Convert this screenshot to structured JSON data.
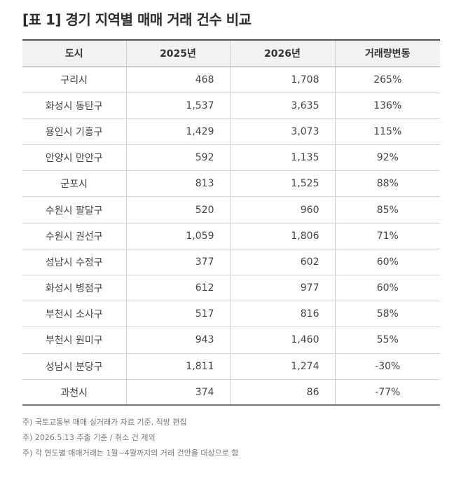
{
  "title": "[표 1] 경기 지역별 매매 거래 건수 비교",
  "table": {
    "headers": [
      "도시",
      "2025년",
      "2026년",
      "거래량변동"
    ],
    "rows": [
      {
        "city": "구리시",
        "y2025": "468",
        "y2026": "1,708",
        "change": "265%"
      },
      {
        "city": "화성시 동탄구",
        "y2025": "1,537",
        "y2026": "3,635",
        "change": "136%"
      },
      {
        "city": "용인시 기흥구",
        "y2025": "1,429",
        "y2026": "3,073",
        "change": "115%"
      },
      {
        "city": "안양시 만안구",
        "y2025": "592",
        "y2026": "1,135",
        "change": "92%"
      },
      {
        "city": "군포시",
        "y2025": "813",
        "y2026": "1,525",
        "change": "88%"
      },
      {
        "city": "수원시 팔달구",
        "y2025": "520",
        "y2026": "960",
        "change": "85%"
      },
      {
        "city": "수원시 권선구",
        "y2025": "1,059",
        "y2026": "1,806",
        "change": "71%"
      },
      {
        "city": "성남시 수정구",
        "y2025": "377",
        "y2026": "602",
        "change": "60%"
      },
      {
        "city": "화성시 병점구",
        "y2025": "612",
        "y2026": "977",
        "change": "60%"
      },
      {
        "city": "부천시 소사구",
        "y2025": "517",
        "y2026": "816",
        "change": "58%"
      },
      {
        "city": "부천시 원미구",
        "y2025": "943",
        "y2026": "1,460",
        "change": "55%"
      },
      {
        "city": "성남시 분당구",
        "y2025": "1,811",
        "y2026": "1,274",
        "change": "-30%"
      },
      {
        "city": "과천시",
        "y2025": "374",
        "y2026": "86",
        "change": "-77%"
      }
    ]
  },
  "notes": [
    "주) 국토교통부 매매 실거래가 자료 기준, 직방 편집",
    "주) 2026.5.13 추출 기준 / 취소 건 제외",
    "주) 각 연도별 매매거래는 1월~4월까지의 거래 건만을 대상으로 함"
  ]
}
